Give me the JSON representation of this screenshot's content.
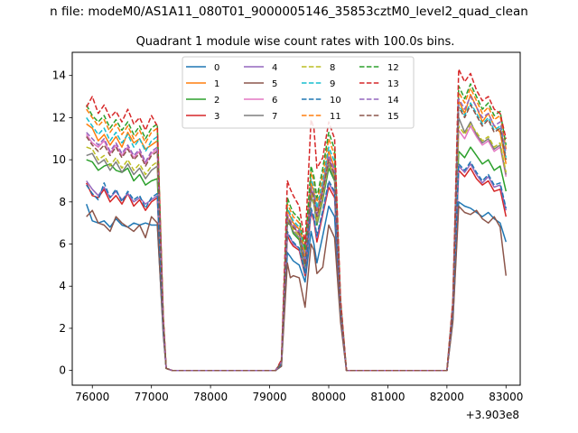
{
  "chart_data": {
    "type": "line",
    "suptitle": "n file: modeM0/AS1A11_080T01_9000005146_35853cztM0_level2_quad_clean",
    "title": "Quadrant 1 module wise count rates with 100.0s bins.",
    "xlabel": "",
    "ylabel": "",
    "x_offset_label": "+3.903e8",
    "xlim": [
      75660,
      83240
    ],
    "ylim": [
      -0.7,
      15.1
    ],
    "xticks": [
      76000,
      77000,
      78000,
      79000,
      80000,
      81000,
      82000,
      83000
    ],
    "yticks": [
      0,
      2,
      4,
      6,
      8,
      10,
      12,
      14
    ],
    "legend_location": "upper center",
    "legend_columns": 4,
    "x": [
      75900,
      76000,
      76100,
      76200,
      76300,
      76400,
      76500,
      76600,
      76700,
      76800,
      76900,
      77000,
      77100,
      77200,
      77250,
      77350,
      77500,
      78000,
      78500,
      79000,
      79100,
      79200,
      79300,
      79350,
      79400,
      79500,
      79600,
      79700,
      79750,
      79800,
      79900,
      80000,
      80100,
      80200,
      80300,
      80400,
      80500,
      81000,
      81500,
      82000,
      82100,
      82200,
      82300,
      82400,
      82500,
      82600,
      82700,
      82800,
      82900,
      83000
    ],
    "series": [
      {
        "name": "0",
        "color": "#1f77b4",
        "dash": "solid",
        "values": [
          7.9,
          7.1,
          7.0,
          7.1,
          6.8,
          7.2,
          6.9,
          6.8,
          7.0,
          6.9,
          7.0,
          6.9,
          6.9,
          1.8,
          0.1,
          0.0,
          0.0,
          0.0,
          0.0,
          0.0,
          0.0,
          0.2,
          5.6,
          5.4,
          5.2,
          5.0,
          4.2,
          6.6,
          6.0,
          5.1,
          6.4,
          7.8,
          7.3,
          2.5,
          0.0,
          0.0,
          0.0,
          0.0,
          0.0,
          0.0,
          2.4,
          8.0,
          7.8,
          7.7,
          7.5,
          7.3,
          7.5,
          7.2,
          7.0,
          6.1
        ]
      },
      {
        "name": "1",
        "color": "#ff7f0e",
        "dash": "solid",
        "values": [
          11.7,
          11.5,
          10.9,
          11.2,
          10.7,
          11.1,
          10.6,
          11.3,
          10.8,
          11.0,
          10.5,
          10.7,
          10.9,
          2.4,
          0.1,
          0.0,
          0.0,
          0.0,
          0.0,
          0.0,
          0.0,
          0.4,
          7.6,
          7.3,
          7.0,
          6.7,
          5.2,
          8.9,
          8.5,
          7.6,
          8.8,
          10.4,
          9.6,
          3.1,
          0.0,
          0.0,
          0.0,
          0.0,
          0.0,
          0.0,
          3.0,
          12.8,
          12.2,
          13.1,
          12.5,
          11.8,
          12.2,
          11.6,
          11.3,
          9.8
        ]
      },
      {
        "name": "2",
        "color": "#2ca02c",
        "dash": "solid",
        "values": [
          10.0,
          9.9,
          9.5,
          9.7,
          9.8,
          9.5,
          9.4,
          9.6,
          9.0,
          9.3,
          8.8,
          9.0,
          9.1,
          2.1,
          0.1,
          0.0,
          0.0,
          0.0,
          0.0,
          0.0,
          0.0,
          0.3,
          7.0,
          6.9,
          6.5,
          6.2,
          4.8,
          8.2,
          7.9,
          6.9,
          8.1,
          9.6,
          9.0,
          2.9,
          0.0,
          0.0,
          0.0,
          0.0,
          0.0,
          0.0,
          2.8,
          10.4,
          10.1,
          10.6,
          10.2,
          9.8,
          10.0,
          9.5,
          9.7,
          8.5
        ]
      },
      {
        "name": "3",
        "color": "#d62728",
        "dash": "solid",
        "values": [
          8.9,
          8.3,
          8.2,
          8.6,
          8.0,
          8.3,
          7.9,
          8.4,
          7.8,
          8.1,
          7.6,
          8.0,
          8.2,
          1.9,
          0.1,
          0.0,
          0.0,
          0.0,
          0.0,
          0.0,
          0.0,
          0.3,
          6.4,
          6.1,
          5.9,
          5.7,
          4.5,
          7.5,
          7.1,
          6.1,
          7.4,
          8.7,
          8.2,
          2.7,
          0.0,
          0.0,
          0.0,
          0.0,
          0.0,
          0.0,
          2.6,
          9.5,
          9.2,
          9.6,
          9.1,
          8.8,
          9.0,
          8.5,
          8.6,
          7.3
        ]
      },
      {
        "name": "4",
        "color": "#9467bd",
        "dash": "solid",
        "values": [
          9.0,
          8.6,
          8.3,
          8.7,
          8.2,
          8.5,
          8.1,
          8.4,
          8.0,
          8.2,
          7.9,
          8.1,
          8.3,
          1.9,
          0.1,
          0.0,
          0.0,
          0.0,
          0.0,
          0.0,
          0.0,
          0.3,
          6.5,
          6.3,
          6.0,
          5.8,
          4.6,
          7.6,
          7.2,
          6.3,
          7.5,
          8.9,
          8.4,
          2.7,
          0.0,
          0.0,
          0.0,
          0.0,
          0.0,
          0.0,
          2.7,
          9.7,
          9.4,
          9.8,
          9.3,
          8.9,
          9.2,
          8.7,
          8.8,
          7.6
        ]
      },
      {
        "name": "5",
        "color": "#8c564b",
        "dash": "solid",
        "values": [
          7.3,
          7.6,
          7.0,
          6.9,
          6.6,
          7.3,
          7.0,
          6.8,
          6.6,
          6.9,
          6.3,
          7.3,
          7.0,
          1.7,
          0.1,
          0.0,
          0.0,
          0.0,
          0.0,
          0.0,
          0.0,
          0.2,
          5.1,
          4.4,
          4.5,
          4.4,
          3.0,
          6.0,
          5.7,
          4.6,
          4.9,
          6.9,
          6.3,
          2.3,
          0.0,
          0.0,
          0.0,
          0.0,
          0.0,
          0.0,
          2.3,
          7.8,
          7.5,
          7.4,
          7.6,
          7.2,
          7.0,
          7.3,
          6.8,
          4.5
        ]
      },
      {
        "name": "6",
        "color": "#e377c2",
        "dash": "solid",
        "values": [
          11.2,
          10.8,
          10.6,
          10.9,
          10.3,
          10.7,
          10.2,
          10.6,
          10.1,
          10.4,
          9.8,
          10.3,
          10.5,
          2.3,
          0.1,
          0.0,
          0.0,
          0.0,
          0.0,
          0.0,
          0.0,
          0.4,
          7.3,
          7.0,
          6.8,
          6.5,
          5.0,
          8.6,
          8.2,
          7.3,
          8.5,
          10.1,
          9.4,
          3.0,
          0.0,
          0.0,
          0.0,
          0.0,
          0.0,
          0.0,
          2.9,
          11.4,
          11.0,
          11.6,
          11.1,
          10.7,
          10.9,
          10.4,
          10.6,
          9.2
        ]
      },
      {
        "name": "7",
        "color": "#7f7f7f",
        "dash": "solid",
        "values": [
          10.2,
          10.3,
          9.8,
          10.0,
          9.5,
          9.9,
          9.4,
          9.8,
          9.3,
          9.6,
          9.1,
          9.5,
          9.7,
          2.2,
          0.1,
          0.0,
          0.0,
          0.0,
          0.0,
          0.0,
          0.0,
          0.3,
          7.1,
          6.9,
          6.6,
          6.3,
          4.9,
          8.3,
          7.9,
          7.0,
          8.2,
          9.8,
          9.1,
          2.9,
          0.0,
          0.0,
          0.0,
          0.0,
          0.0,
          0.0,
          2.8,
          12.0,
          11.3,
          11.8,
          11.2,
          10.8,
          11.0,
          10.5,
          10.7,
          9.3
        ]
      },
      {
        "name": "8",
        "color": "#bcbd22",
        "dash": "dashed",
        "values": [
          10.6,
          10.5,
          10.0,
          10.2,
          9.7,
          10.1,
          9.6,
          10.0,
          9.5,
          9.8,
          9.3,
          9.7,
          9.9,
          2.2,
          0.1,
          0.0,
          0.0,
          0.0,
          0.0,
          0.0,
          0.0,
          0.4,
          7.2,
          7.0,
          6.7,
          6.4,
          5.0,
          8.4,
          8.0,
          7.1,
          8.3,
          9.9,
          9.2,
          2.9,
          0.0,
          0.0,
          0.0,
          0.0,
          0.0,
          0.0,
          2.9,
          11.6,
          11.2,
          11.7,
          11.3,
          10.9,
          11.1,
          10.6,
          10.8,
          9.4
        ]
      },
      {
        "name": "9",
        "color": "#17becf",
        "dash": "dashed",
        "values": [
          12.0,
          11.6,
          11.2,
          11.5,
          10.9,
          11.3,
          10.8,
          11.2,
          10.6,
          11.0,
          10.4,
          10.9,
          11.1,
          2.4,
          0.1,
          0.0,
          0.0,
          0.0,
          0.0,
          0.0,
          0.0,
          0.4,
          7.7,
          7.4,
          7.1,
          6.8,
          5.3,
          9.1,
          8.7,
          7.7,
          9.0,
          10.6,
          9.9,
          3.1,
          0.0,
          0.0,
          0.0,
          0.0,
          0.0,
          0.0,
          3.0,
          12.6,
          12.1,
          12.7,
          12.2,
          11.7,
          12.0,
          11.4,
          11.6,
          10.1
        ]
      },
      {
        "name": "10",
        "color": "#1f77b4",
        "dash": "dashed",
        "values": [
          8.8,
          8.4,
          8.1,
          8.9,
          8.2,
          8.6,
          8.0,
          8.5,
          8.1,
          8.3,
          7.7,
          8.2,
          8.4,
          1.9,
          0.1,
          0.0,
          0.0,
          0.0,
          0.0,
          0.0,
          0.0,
          0.3,
          6.6,
          6.3,
          6.1,
          5.8,
          4.6,
          7.7,
          7.3,
          6.4,
          7.6,
          9.0,
          8.5,
          2.8,
          0.0,
          0.0,
          0.0,
          0.0,
          0.0,
          0.0,
          2.7,
          9.8,
          9.5,
          9.9,
          9.4,
          9.0,
          9.3,
          8.8,
          8.9,
          7.7
        ]
      },
      {
        "name": "11",
        "color": "#ff7f0e",
        "dash": "dashed",
        "values": [
          12.4,
          12.0,
          11.6,
          11.9,
          11.3,
          11.7,
          11.2,
          11.6,
          11.0,
          11.4,
          10.8,
          11.3,
          11.5,
          2.5,
          0.1,
          0.0,
          0.0,
          0.0,
          0.0,
          0.0,
          0.0,
          0.4,
          7.9,
          7.6,
          7.3,
          7.0,
          5.5,
          9.4,
          9.0,
          8.0,
          9.3,
          11.0,
          10.2,
          3.2,
          0.0,
          0.0,
          0.0,
          0.0,
          0.0,
          0.0,
          3.1,
          13.2,
          12.7,
          13.4,
          12.8,
          12.2,
          12.5,
          11.9,
          12.1,
          10.5
        ]
      },
      {
        "name": "12",
        "color": "#2ca02c",
        "dash": "dashed",
        "values": [
          12.6,
          12.1,
          11.8,
          12.1,
          11.5,
          11.9,
          11.4,
          11.8,
          11.2,
          11.6,
          11.0,
          11.5,
          11.7,
          2.5,
          0.1,
          0.0,
          0.0,
          0.0,
          0.0,
          0.0,
          0.0,
          0.4,
          8.2,
          7.8,
          7.5,
          7.2,
          5.7,
          9.7,
          9.2,
          8.2,
          9.6,
          11.3,
          10.5,
          3.3,
          0.0,
          0.0,
          0.0,
          0.0,
          0.0,
          0.0,
          3.2,
          13.5,
          12.9,
          13.6,
          13.0,
          12.4,
          12.7,
          12.1,
          12.3,
          10.7
        ]
      },
      {
        "name": "13",
        "color": "#d62728",
        "dash": "dashed",
        "values": [
          12.5,
          13.0,
          12.2,
          12.6,
          12.0,
          12.3,
          11.8,
          12.4,
          11.7,
          12.0,
          11.4,
          12.1,
          11.6,
          2.6,
          0.1,
          0.0,
          0.0,
          0.0,
          0.0,
          0.0,
          0.0,
          0.5,
          9.0,
          8.6,
          8.3,
          7.8,
          6.0,
          11.9,
          11.5,
          9.6,
          10.1,
          11.8,
          11.0,
          3.4,
          0.0,
          0.0,
          0.0,
          0.0,
          0.0,
          0.0,
          3.3,
          14.3,
          13.7,
          14.1,
          13.3,
          12.8,
          13.0,
          12.4,
          12.2,
          11.0
        ]
      },
      {
        "name": "14",
        "color": "#9467bd",
        "dash": "dashed",
        "values": [
          11.3,
          11.0,
          10.7,
          11.0,
          10.4,
          10.8,
          10.3,
          10.7,
          10.2,
          10.5,
          9.9,
          10.4,
          10.6,
          2.3,
          0.1,
          0.0,
          0.0,
          0.0,
          0.0,
          0.0,
          0.0,
          0.4,
          7.4,
          7.1,
          6.9,
          6.6,
          5.1,
          8.7,
          8.3,
          7.4,
          8.6,
          10.2,
          9.5,
          3.0,
          0.0,
          0.0,
          0.0,
          0.0,
          0.0,
          0.0,
          3.0,
          12.9,
          12.4,
          13.0,
          12.5,
          12.0,
          12.2,
          11.6,
          11.8,
          10.3
        ]
      },
      {
        "name": "15",
        "color": "#8c564b",
        "dash": "dashed",
        "values": [
          11.1,
          10.7,
          10.4,
          10.7,
          10.2,
          10.6,
          10.1,
          10.5,
          10.0,
          10.3,
          9.7,
          10.2,
          10.4,
          2.3,
          0.1,
          0.0,
          0.0,
          0.0,
          0.0,
          0.0,
          0.0,
          0.4,
          7.3,
          7.0,
          6.8,
          6.5,
          5.0,
          8.6,
          8.2,
          7.3,
          8.5,
          10.0,
          9.3,
          3.0,
          0.0,
          0.0,
          0.0,
          0.0,
          0.0,
          0.0,
          2.9,
          12.5,
          12.0,
          12.6,
          12.1,
          11.6,
          11.9,
          11.3,
          11.5,
          10.0
        ]
      }
    ]
  }
}
